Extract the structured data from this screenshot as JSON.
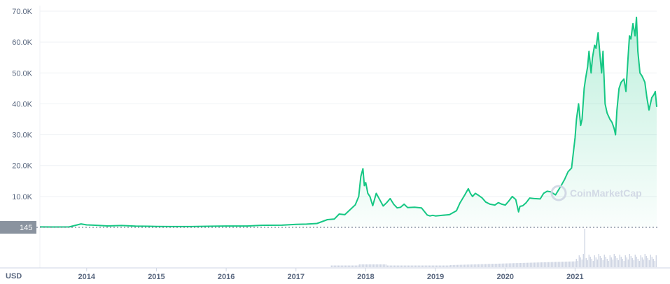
{
  "chart_data": {
    "type": "area",
    "currency_label": "USD",
    "current_price_badge": "145",
    "watermark": "CoinMarketCap",
    "colors": {
      "line": "#16c784",
      "fill_top": "#16c784",
      "grid": "#eff2f5",
      "axis_text": "#58667e",
      "volume": "#cfd6e4",
      "badge": "#8a939f"
    },
    "grid": true,
    "ylim": [
      0,
      70000
    ],
    "y_ticks": [
      {
        "value": 10000,
        "label": "10.0K"
      },
      {
        "value": 20000,
        "label": "20.0K"
      },
      {
        "value": 30000,
        "label": "30.0K"
      },
      {
        "value": 40000,
        "label": "40.0K"
      },
      {
        "value": 50000,
        "label": "50.0K"
      },
      {
        "value": 60000,
        "label": "60.0K"
      },
      {
        "value": 70000,
        "label": "70.0K"
      }
    ],
    "x_ticks": [
      "2014",
      "2015",
      "2016",
      "2017",
      "2018",
      "2019",
      "2020",
      "2021"
    ],
    "xlim": [
      2013.33,
      2022.17
    ],
    "series": [
      {
        "x": [
          2013.33,
          2013.5,
          2013.75,
          2013.92,
          2014.0,
          2014.1,
          2014.3,
          2014.5,
          2014.7,
          2014.9,
          2015.0,
          2015.2,
          2015.5,
          2015.8,
          2016.0,
          2016.3,
          2016.5,
          2016.8,
          2017.0,
          2017.15,
          2017.3,
          2017.45,
          2017.55,
          2017.62,
          2017.7,
          2017.78,
          2017.85,
          2017.9,
          2017.93,
          2017.96,
          2017.98,
          2018.0,
          2018.03,
          2018.06,
          2018.1,
          2018.15,
          2018.2,
          2018.25,
          2018.3,
          2018.35,
          2018.4,
          2018.45,
          2018.5,
          2018.55,
          2018.6,
          2018.7,
          2018.8,
          2018.88,
          2018.92,
          2018.96,
          2019.0,
          2019.1,
          2019.2,
          2019.3,
          2019.35,
          2019.42,
          2019.47,
          2019.5,
          2019.53,
          2019.57,
          2019.62,
          2019.67,
          2019.72,
          2019.78,
          2019.85,
          2019.9,
          2019.95,
          2020.0,
          2020.05,
          2020.1,
          2020.15,
          2020.19,
          2020.21,
          2020.25,
          2020.3,
          2020.35,
          2020.42,
          2020.5,
          2020.55,
          2020.6,
          2020.65,
          2020.72,
          2020.8,
          2020.85,
          2020.9,
          2020.95,
          2021.0,
          2021.02,
          2021.05,
          2021.08,
          2021.1,
          2021.13,
          2021.15,
          2021.18,
          2021.2,
          2021.23,
          2021.25,
          2021.28,
          2021.3,
          2021.33,
          2021.36,
          2021.38,
          2021.4,
          2021.43,
          2021.46,
          2021.5,
          2021.53,
          2021.56,
          2021.58,
          2021.6,
          2021.63,
          2021.66,
          2021.7,
          2021.73,
          2021.76,
          2021.78,
          2021.8,
          2021.83,
          2021.86,
          2021.88,
          2021.9,
          2021.93,
          2021.96,
          2022.0,
          2022.03,
          2022.06,
          2022.1,
          2022.13,
          2022.15,
          2022.17
        ],
        "y": [
          130,
          110,
          140,
          1100,
          800,
          700,
          450,
          600,
          400,
          350,
          300,
          250,
          260,
          370,
          430,
          420,
          650,
          700,
          960,
          1050,
          1250,
          2500,
          2700,
          4300,
          4100,
          5800,
          7300,
          10000,
          16500,
          19000,
          13500,
          14500,
          11000,
          10000,
          7000,
          11000,
          9000,
          6900,
          8000,
          9300,
          7500,
          6300,
          6500,
          7500,
          6400,
          6500,
          6300,
          4000,
          3700,
          3900,
          3700,
          3900,
          4100,
          5400,
          7900,
          10500,
          12500,
          11000,
          10000,
          11000,
          10300,
          9500,
          8200,
          7500,
          7200,
          8000,
          7500,
          7200,
          8500,
          10000,
          9000,
          5000,
          6800,
          7000,
          8000,
          9500,
          9300,
          9200,
          11000,
          11700,
          11500,
          10500,
          13500,
          15500,
          18000,
          19200,
          29000,
          35000,
          40000,
          33000,
          35000,
          45000,
          48000,
          52000,
          57000,
          50000,
          55000,
          59000,
          58000,
          63000,
          55000,
          50000,
          57000,
          40000,
          37000,
          35000,
          34000,
          32000,
          30000,
          38000,
          45000,
          47000,
          48000,
          44000,
          55000,
          62000,
          61000,
          66000,
          62000,
          68000,
          57000,
          50000,
          49000,
          47000,
          42000,
          38000,
          42000,
          43000,
          44000,
          39000
        ]
      }
    ]
  }
}
